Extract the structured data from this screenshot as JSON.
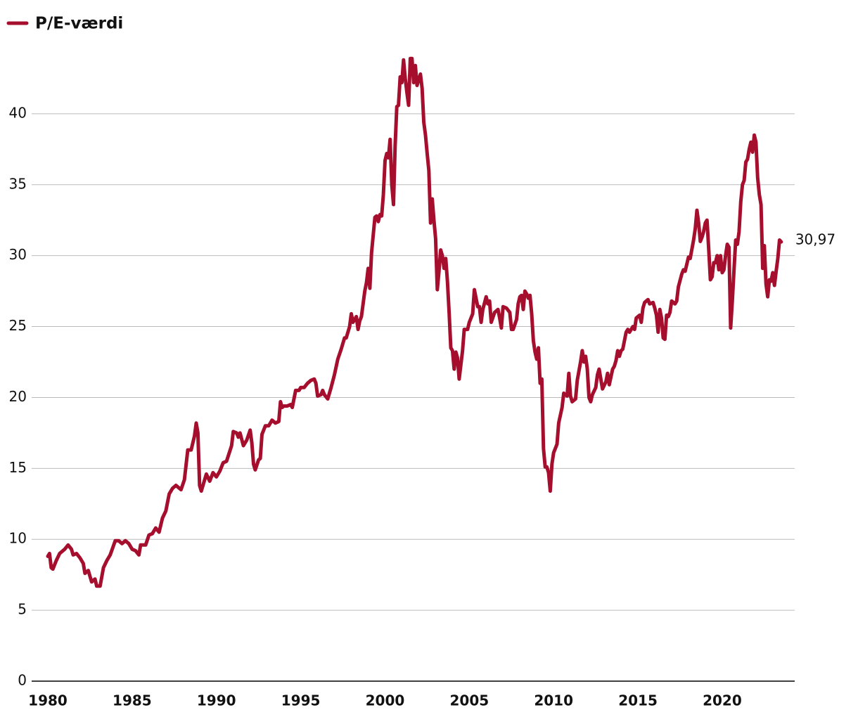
{
  "chart_data": {
    "type": "line",
    "series": [
      {
        "name": "P/E-værdi",
        "color": "#a50f2d",
        "x": [
          1980.0,
          1980.1,
          1980.2,
          1980.3,
          1980.5,
          1980.7,
          1981.0,
          1981.2,
          1981.4,
          1981.5,
          1981.7,
          1981.9,
          1982.1,
          1982.2,
          1982.4,
          1982.6,
          1982.8,
          1982.9,
          1983.1,
          1983.3,
          1983.5,
          1983.7,
          1984.0,
          1984.2,
          1984.4,
          1984.6,
          1984.8,
          1985.0,
          1985.2,
          1985.4,
          1985.5,
          1985.8,
          1986.0,
          1986.2,
          1986.4,
          1986.6,
          1986.8,
          1987.0,
          1987.2,
          1987.4,
          1987.6,
          1987.9,
          1988.1,
          1988.3,
          1988.5,
          1988.7,
          1988.8,
          1988.9,
          1989.0,
          1989.1,
          1989.3,
          1989.4,
          1989.6,
          1989.8,
          1990.0,
          1990.2,
          1990.4,
          1990.6,
          1990.9,
          1991.0,
          1991.2,
          1991.3,
          1991.4,
          1991.6,
          1991.8,
          1992.0,
          1992.1,
          1992.2,
          1992.3,
          1992.5,
          1992.6,
          1992.7,
          1992.9,
          1993.1,
          1993.3,
          1993.5,
          1993.7,
          1993.8,
          1993.9,
          1994.0,
          1994.2,
          1994.4,
          1994.5,
          1994.7,
          1994.9,
          1995.0,
          1995.2,
          1995.4,
          1995.6,
          1995.8,
          1995.9,
          1996.0,
          1996.2,
          1996.3,
          1996.4,
          1996.6,
          1996.8,
          1997.0,
          1997.2,
          1997.4,
          1997.6,
          1997.7,
          1997.9,
          1998.0,
          1998.1,
          1998.3,
          1998.4,
          1998.5,
          1998.6,
          1998.8,
          1998.9,
          1999.0,
          1999.1,
          1999.2,
          1999.4,
          1999.5,
          1999.6,
          1999.7,
          1999.8,
          1999.9,
          2000.0,
          2000.1,
          2000.2,
          2000.3,
          2000.4,
          2000.5,
          2000.6,
          2000.7,
          2000.8,
          2000.9,
          2001.0,
          2001.1,
          2001.2,
          2001.3,
          2001.4,
          2001.5,
          2001.6,
          2001.7,
          2001.8,
          2001.9,
          2002.0,
          2002.1,
          2002.2,
          2002.3,
          2002.4,
          2002.5,
          2002.6,
          2002.7,
          2002.8,
          2002.9,
          2003.0,
          2003.1,
          2003.2,
          2003.3,
          2003.4,
          2003.5,
          2003.6,
          2003.7,
          2003.8,
          2003.9,
          2004.0,
          2004.1,
          2004.2,
          2004.3,
          2004.4,
          2004.5,
          2004.6,
          2004.7,
          2004.9,
          2005.0,
          2005.2,
          2005.3,
          2005.4,
          2005.5,
          2005.6,
          2005.7,
          2005.8,
          2006.0,
          2006.1,
          2006.2,
          2006.3,
          2006.5,
          2006.7,
          2006.8,
          2006.9,
          2007.0,
          2007.2,
          2007.4,
          2007.5,
          2007.6,
          2007.8,
          2007.9,
          2008.0,
          2008.1,
          2008.2,
          2008.3,
          2008.4,
          2008.5,
          2008.6,
          2008.7,
          2008.8,
          2008.9,
          2009.0,
          2009.1,
          2009.2,
          2009.3,
          2009.4,
          2009.5,
          2009.6,
          2009.7,
          2009.8,
          2009.9,
          2010.0,
          2010.2,
          2010.3,
          2010.5,
          2010.6,
          2010.7,
          2010.8,
          2010.9,
          2011.0,
          2011.1,
          2011.3,
          2011.4,
          2011.6,
          2011.7,
          2011.8,
          2011.9,
          2012.0,
          2012.1,
          2012.2,
          2012.3,
          2012.5,
          2012.6,
          2012.7,
          2012.8,
          2012.9,
          2013.1,
          2013.2,
          2013.3,
          2013.5,
          2013.6,
          2013.7,
          2013.8,
          2013.9,
          2014.0,
          2014.1,
          2014.3,
          2014.4,
          2014.5,
          2014.7,
          2014.8,
          2014.9,
          2015.1,
          2015.2,
          2015.3,
          2015.4,
          2015.6,
          2015.7,
          2015.9,
          2016.0,
          2016.1,
          2016.2,
          2016.3,
          2016.4,
          2016.5,
          2016.6,
          2016.7,
          2016.8,
          2016.9,
          2017.0,
          2017.2,
          2017.3,
          2017.4,
          2017.6,
          2017.7,
          2017.8,
          2018.0,
          2018.1,
          2018.3,
          2018.4,
          2018.5,
          2018.6,
          2018.7,
          2018.8,
          2018.9,
          2019.0,
          2019.1,
          2019.2,
          2019.3,
          2019.4,
          2019.5,
          2019.6,
          2019.7,
          2019.8,
          2019.9,
          2020.0,
          2020.1,
          2020.2,
          2020.3,
          2020.4,
          2020.5,
          2020.6,
          2020.7,
          2020.8,
          2020.9,
          2021.0,
          2021.1,
          2021.2,
          2021.3,
          2021.4,
          2021.5,
          2021.6,
          2021.7,
          2021.8,
          2021.9,
          2022.0,
          2022.1,
          2022.2,
          2022.3,
          2022.4,
          2022.5,
          2022.6,
          2022.7,
          2022.8,
          2022.9,
          2023.0,
          2023.1,
          2023.2,
          2023.3,
          2023.4,
          2023.5
        ],
        "values": [
          8.8,
          9.0,
          8.0,
          7.9,
          8.5,
          9.0,
          9.3,
          9.6,
          9.3,
          8.9,
          9.0,
          8.7,
          8.3,
          7.6,
          7.8,
          7.0,
          7.2,
          6.7,
          6.7,
          8.0,
          8.5,
          8.9,
          9.9,
          9.9,
          9.7,
          9.9,
          9.7,
          9.3,
          9.2,
          8.9,
          9.6,
          9.6,
          10.3,
          10.4,
          10.8,
          10.5,
          11.5,
          12.0,
          13.2,
          13.6,
          13.8,
          13.5,
          14.2,
          16.3,
          16.3,
          17.3,
          18.2,
          17.5,
          13.8,
          13.4,
          14.2,
          14.6,
          14.1,
          14.7,
          14.4,
          14.8,
          15.4,
          15.5,
          16.6,
          17.6,
          17.5,
          17.2,
          17.5,
          16.6,
          17.0,
          17.7,
          16.8,
          15.3,
          14.9,
          15.6,
          15.7,
          17.4,
          18.0,
          18.0,
          18.4,
          18.2,
          18.3,
          19.7,
          19.3,
          19.4,
          19.4,
          19.5,
          19.3,
          20.5,
          20.5,
          20.7,
          20.7,
          21.0,
          21.2,
          21.3,
          21.0,
          20.1,
          20.2,
          20.5,
          20.2,
          19.9,
          20.7,
          21.6,
          22.7,
          23.4,
          24.2,
          24.2,
          25.0,
          25.9,
          25.3,
          25.7,
          24.8,
          25.4,
          25.7,
          27.5,
          28.1,
          29.1,
          27.7,
          30.2,
          32.7,
          32.8,
          32.4,
          32.9,
          32.8,
          34.3,
          36.7,
          37.2,
          36.9,
          38.2,
          35.0,
          33.6,
          37.7,
          40.5,
          40.6,
          42.6,
          42.2,
          43.8,
          42.5,
          41.5,
          40.6,
          43.9,
          43.9,
          42.2,
          43.4,
          42.0,
          42.4,
          42.8,
          41.8,
          39.4,
          38.5,
          37.2,
          36.0,
          32.3,
          34.0,
          32.5,
          31.2,
          27.6,
          28.9,
          30.4,
          30.0,
          29.1,
          29.8,
          28.2,
          26.0,
          23.5,
          23.3,
          22.0,
          23.2,
          22.8,
          21.3,
          22.3,
          23.3,
          24.8,
          24.8,
          25.3,
          25.9,
          27.6,
          27.0,
          26.4,
          26.4,
          25.3,
          26.2,
          27.1,
          26.6,
          26.8,
          25.3,
          26.0,
          26.2,
          25.6,
          24.9,
          26.4,
          26.3,
          26.0,
          24.8,
          24.8,
          25.5,
          26.6,
          27.1,
          27.2,
          26.2,
          27.5,
          27.3,
          27.0,
          27.2,
          25.9,
          24.0,
          23.2,
          22.7,
          23.5,
          21.0,
          21.3,
          16.4,
          15.1,
          15.1,
          14.7,
          13.4,
          15.3,
          16.1,
          16.7,
          18.2,
          19.3,
          20.3,
          20.2,
          20.1,
          21.7,
          20.1,
          19.7,
          19.9,
          21.2,
          22.5,
          23.3,
          22.5,
          22.9,
          22.0,
          20.0,
          19.7,
          20.2,
          20.7,
          21.6,
          22.0,
          21.3,
          20.6,
          21.1,
          21.7,
          20.9,
          22.0,
          22.2,
          22.6,
          23.3,
          22.9,
          23.3,
          23.4,
          24.6,
          24.8,
          24.6,
          25.0,
          24.8,
          25.6,
          25.8,
          25.3,
          26.3,
          26.7,
          26.9,
          26.6,
          26.7,
          26.3,
          25.8,
          24.6,
          26.2,
          25.6,
          24.2,
          24.1,
          25.8,
          25.7,
          26.0,
          26.8,
          26.6,
          26.8,
          27.8,
          28.7,
          29.0,
          28.9,
          29.9,
          29.8,
          31.1,
          31.9,
          33.2,
          32.3,
          31.0,
          31.3,
          31.7,
          32.3,
          32.5,
          30.5,
          28.3,
          28.5,
          29.5,
          29.5,
          30.0,
          29.0,
          30.0,
          28.8,
          29.0,
          30.0,
          30.8,
          30.6,
          24.9,
          26.8,
          29.0,
          31.1,
          30.8,
          31.7,
          33.8,
          35.0,
          35.3,
          36.6,
          36.8,
          37.5,
          38.0,
          37.3,
          38.5,
          38.0,
          35.5,
          34.3,
          33.6,
          29.1,
          30.7,
          28.0,
          27.1,
          28.3,
          28.2,
          28.8,
          27.9,
          28.9,
          29.8,
          31.1,
          30.97
        ]
      }
    ],
    "annotation": {
      "x": 2023.5,
      "value": 30.97,
      "label": "30,97"
    },
    "xlim": [
      1979.04,
      2024.3
    ],
    "xticks": [
      1980,
      1985,
      1990,
      1995,
      2000,
      2005,
      2010,
      2015,
      2020
    ],
    "ylim": [
      0,
      45
    ],
    "yticks": [
      0,
      5,
      10,
      15,
      20,
      25,
      30,
      35,
      40
    ],
    "grid": true,
    "legend": "top-left"
  }
}
